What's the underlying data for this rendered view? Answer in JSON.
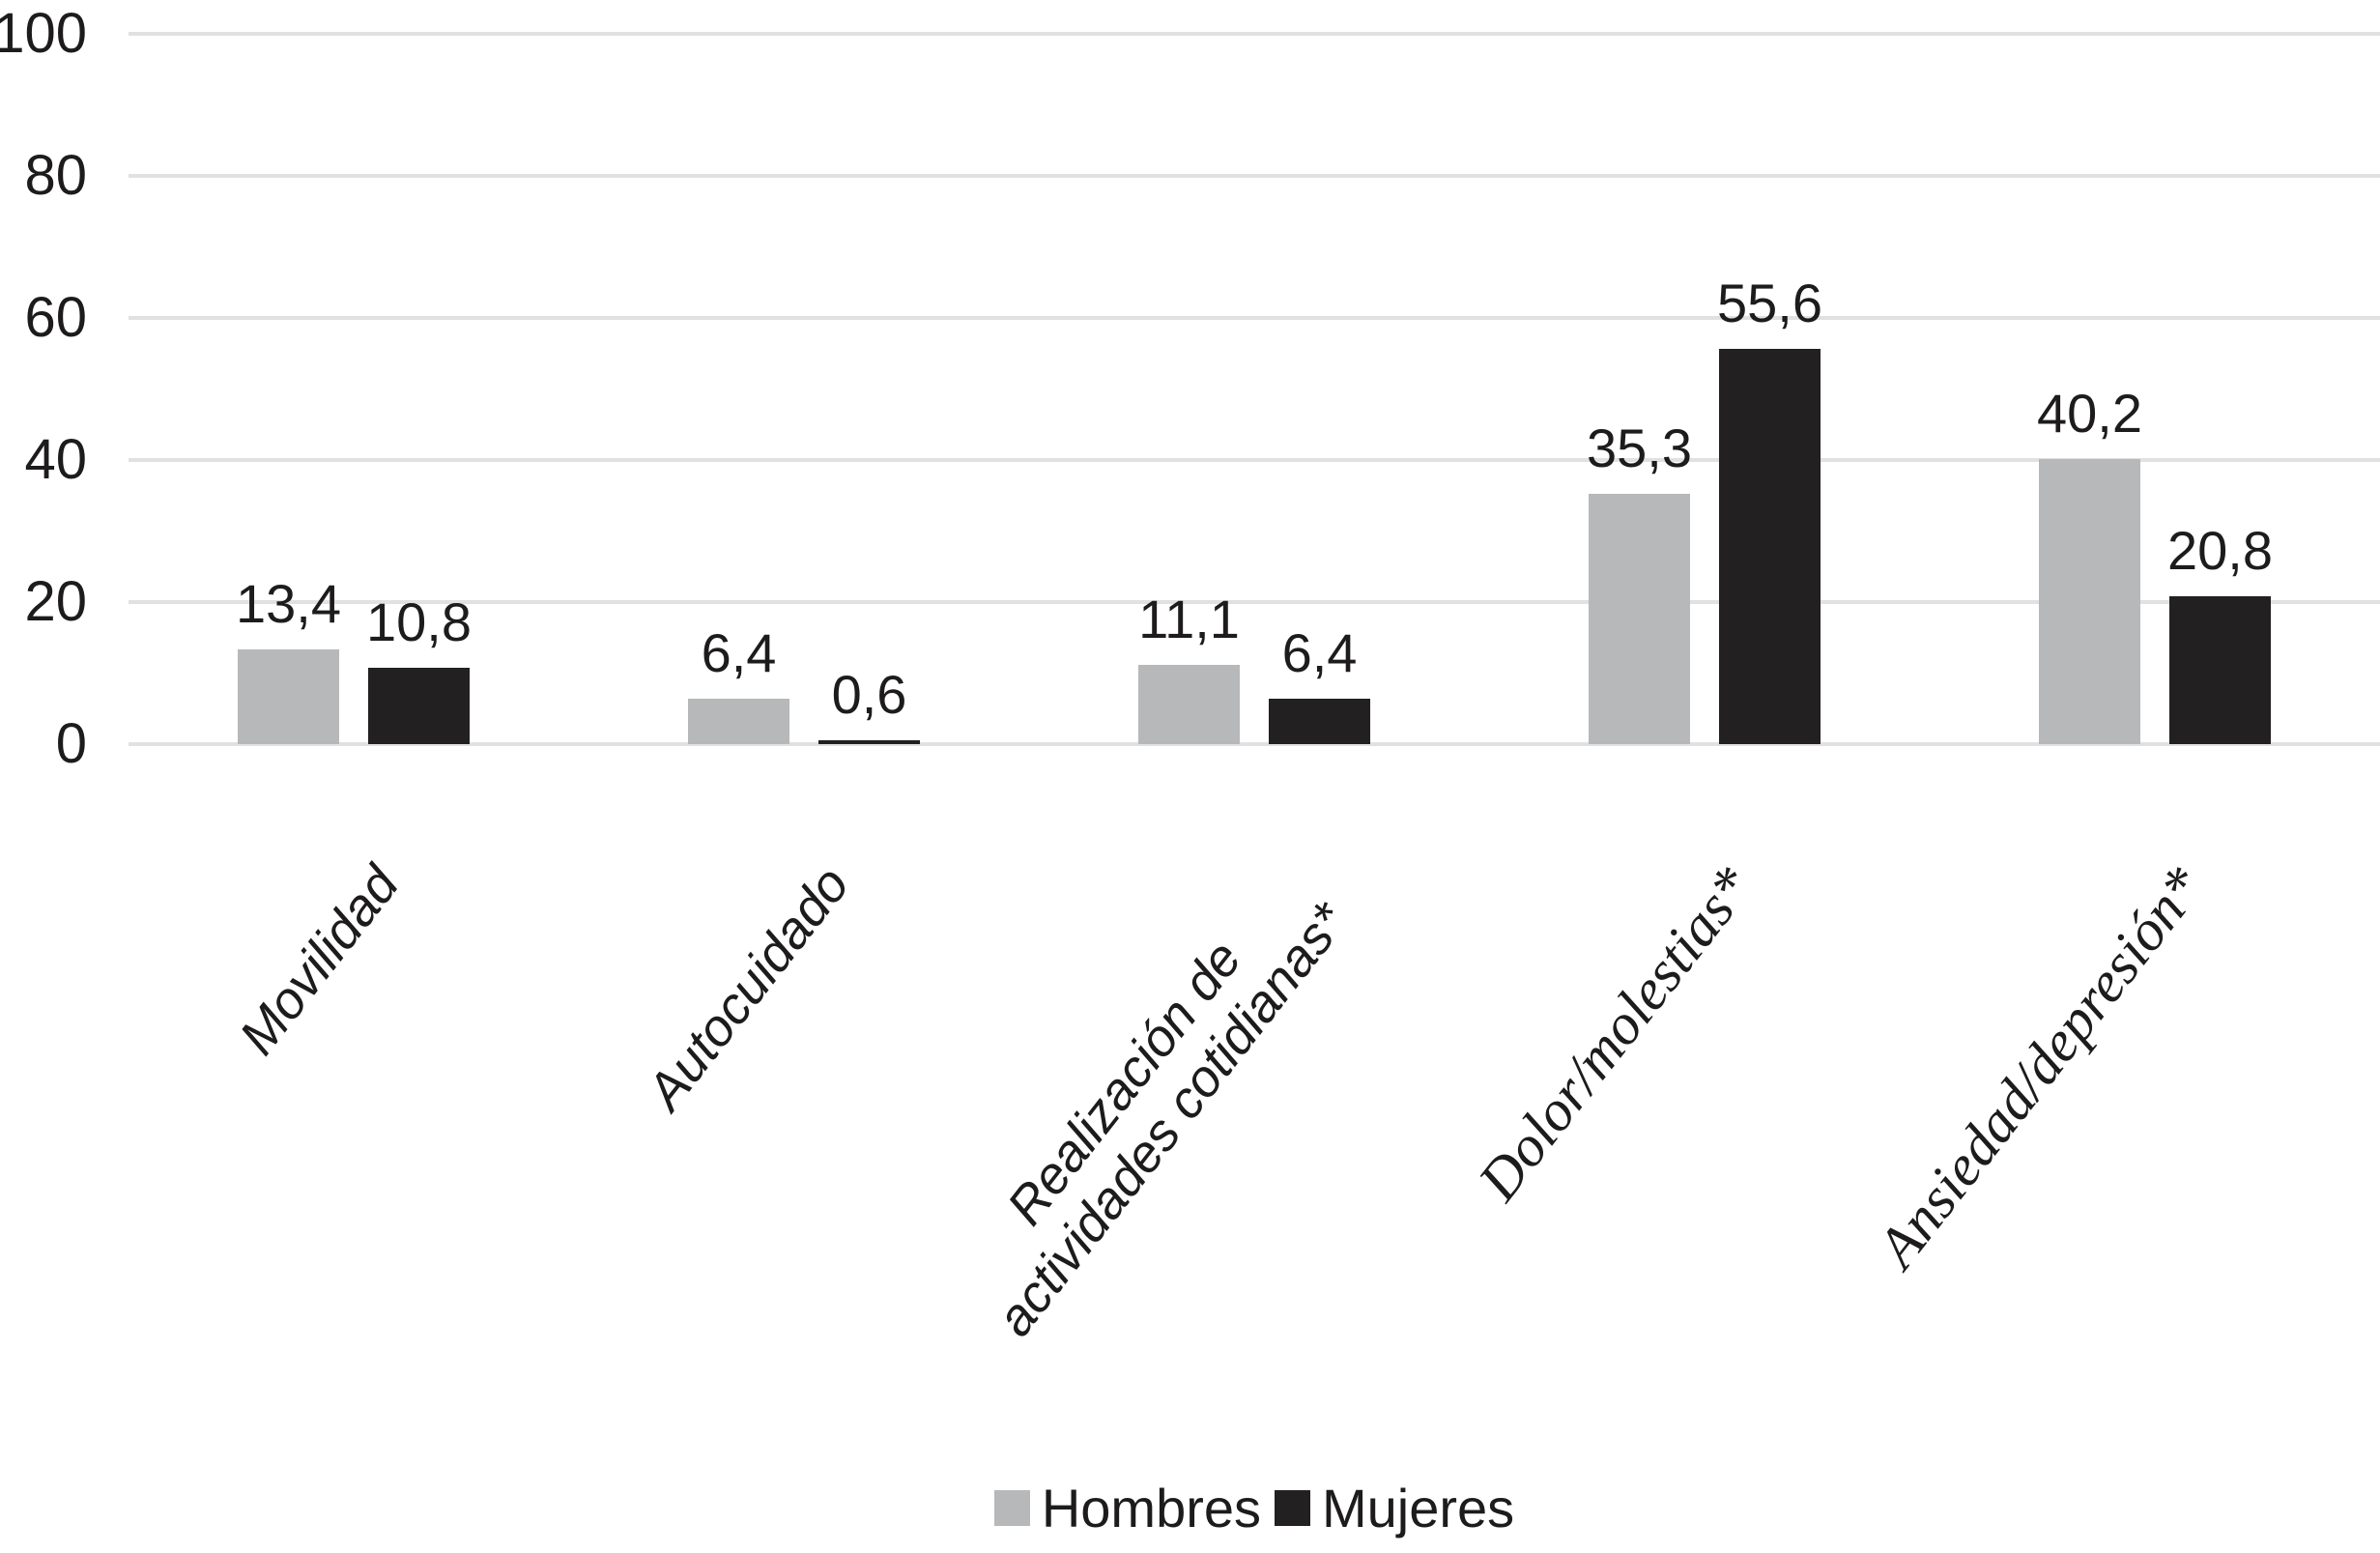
{
  "chart_data": {
    "type": "bar",
    "title": "",
    "xlabel": "",
    "ylabel": "",
    "categories": [
      "Movilidad",
      "Autocuidado",
      "Realización de\nactividades cotidianas*",
      "Dolor/molestias*",
      "Ansiedad/depresión*"
    ],
    "category_font_styles": [
      "sans-italic",
      "sans-italic",
      "sans-italic",
      "serif-italic",
      "serif-italic"
    ],
    "series": [
      {
        "name": "Hombres",
        "color": "#b6b8ba",
        "values": [
          13.4,
          6.4,
          11.1,
          35.3,
          40.2
        ]
      },
      {
        "name": "Mujeres",
        "color": "#232021",
        "values": [
          10.8,
          0.6,
          6.4,
          55.6,
          20.8
        ]
      }
    ],
    "data_labels_shown": true,
    "decimal_separator": ",",
    "y_axis": {
      "min": 0,
      "max": 100,
      "tick_step": 20,
      "tick_labels": [
        "0",
        "20",
        "40",
        "60",
        "80",
        "100"
      ]
    },
    "grid": true,
    "gridline_color": "#e1e1e3",
    "legend_position": "bottom",
    "legend": [
      "Hombres",
      "Mujeres"
    ],
    "background_color": "#ffffff",
    "text_color": "#1d1b1c"
  }
}
